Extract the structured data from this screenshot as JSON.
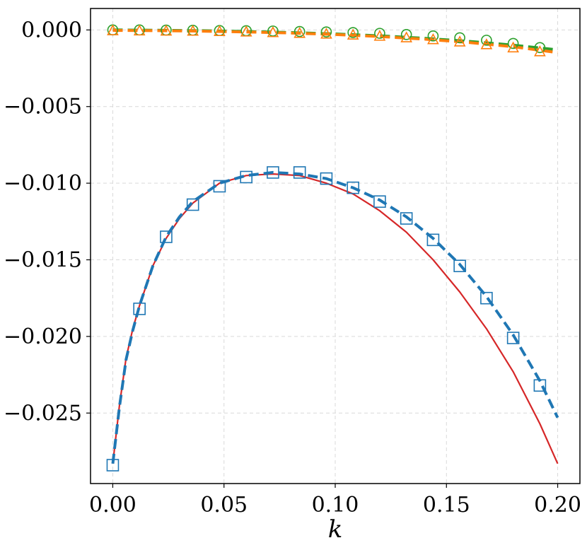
{
  "chart_data": {
    "type": "line",
    "xlabel": "k",
    "ylabel": "",
    "xlim": [
      -0.01,
      0.21
    ],
    "ylim": [
      -0.0296,
      0.0014
    ],
    "grid": true,
    "x_ticks": [
      0.0,
      0.05,
      0.1,
      0.15,
      0.2
    ],
    "x_tick_labels": [
      "0.00",
      "0.05",
      "0.10",
      "0.15",
      "0.20"
    ],
    "y_ticks": [
      0.0,
      -0.005,
      -0.01,
      -0.015,
      -0.02,
      -0.025
    ],
    "y_tick_labels": [
      "0.000",
      "−0.005",
      "−0.010",
      "−0.015",
      "−0.020",
      "−0.025"
    ],
    "colors": {
      "blue": "#1f77b4",
      "orange": "#ff7f0e",
      "green": "#2ca02c",
      "red": "#d62728"
    },
    "series": [
      {
        "style": "dashed-line",
        "color": "#1f77b4",
        "x": [
          0.0,
          0.003,
          0.006,
          0.009,
          0.012,
          0.018,
          0.024,
          0.03,
          0.036,
          0.048,
          0.06,
          0.072,
          0.084,
          0.096,
          0.108,
          0.12,
          0.132,
          0.144,
          0.156,
          0.168,
          0.18,
          0.192,
          0.2
        ],
        "y": [
          -0.0283,
          -0.0246,
          -0.0215,
          -0.0196,
          -0.018,
          -0.0154,
          -0.0135,
          -0.0122,
          -0.0112,
          -0.01,
          -0.0095,
          -0.0093,
          -0.0094,
          -0.0097,
          -0.0103,
          -0.0111,
          -0.0122,
          -0.0136,
          -0.0153,
          -0.0174,
          -0.0199,
          -0.0229,
          -0.0253
        ]
      },
      {
        "style": "square-markers",
        "color": "#1f77b4",
        "x": [
          0.0,
          0.012,
          0.024,
          0.036,
          0.048,
          0.06,
          0.072,
          0.084,
          0.096,
          0.108,
          0.12,
          0.132,
          0.144,
          0.156,
          0.168,
          0.18,
          0.192
        ],
        "y": [
          -0.0284,
          -0.0182,
          -0.0135,
          -0.0114,
          -0.0102,
          -0.0096,
          -0.0093,
          -0.0093,
          -0.0097,
          -0.0103,
          -0.0112,
          -0.0123,
          -0.0137,
          -0.0154,
          -0.0175,
          -0.0201,
          -0.0232
        ]
      },
      {
        "style": "solid-line",
        "color": "#d62728",
        "x": [
          0.0,
          0.003,
          0.006,
          0.009,
          0.012,
          0.018,
          0.024,
          0.03,
          0.036,
          0.048,
          0.06,
          0.072,
          0.084,
          0.096,
          0.108,
          0.12,
          0.132,
          0.144,
          0.156,
          0.168,
          0.18,
          0.192,
          0.2
        ],
        "y": [
          -0.0283,
          -0.0245,
          -0.0214,
          -0.0195,
          -0.018,
          -0.0154,
          -0.0136,
          -0.0123,
          -0.0113,
          -0.01,
          -0.0095,
          -0.0094,
          -0.0095,
          -0.01,
          -0.0107,
          -0.0118,
          -0.0132,
          -0.015,
          -0.0171,
          -0.0195,
          -0.0223,
          -0.0257,
          -0.0283
        ]
      },
      {
        "style": "dashed-line",
        "color": "#2ca02c",
        "x": [
          0.0,
          0.02,
          0.04,
          0.06,
          0.08,
          0.1,
          0.12,
          0.14,
          0.16,
          0.18,
          0.2
        ],
        "y": [
          0.0,
          -2e-05,
          -5e-05,
          -0.0001,
          -0.00017,
          -0.00026,
          -0.00038,
          -0.00054,
          -0.00074,
          -0.00099,
          -0.0013
        ]
      },
      {
        "style": "circle-markers",
        "color": "#2ca02c",
        "x": [
          0.0,
          0.012,
          0.024,
          0.036,
          0.048,
          0.06,
          0.072,
          0.084,
          0.096,
          0.108,
          0.12,
          0.132,
          0.144,
          0.156,
          0.168,
          0.18,
          0.192
        ],
        "y": [
          0.0,
          0.0,
          -1e-05,
          -2e-05,
          -4e-05,
          -5e-05,
          -7e-05,
          -0.0001,
          -0.00013,
          -0.00017,
          -0.00022,
          -0.0003,
          -0.00039,
          -0.00051,
          -0.00067,
          -0.00088,
          -0.00115
        ]
      },
      {
        "style": "dashed-line",
        "color": "#ff7f0e",
        "x": [
          0.0,
          0.02,
          0.04,
          0.06,
          0.08,
          0.1,
          0.12,
          0.14,
          0.16,
          0.18,
          0.2
        ],
        "y": [
          -3e-05,
          -5e-05,
          -8e-05,
          -0.00013,
          -0.0002,
          -0.0003,
          -0.00043,
          -0.0006,
          -0.00082,
          -0.0011,
          -0.00148
        ]
      },
      {
        "style": "triangle-markers",
        "color": "#ff7f0e",
        "x": [
          0.0,
          0.012,
          0.024,
          0.036,
          0.048,
          0.06,
          0.072,
          0.084,
          0.096,
          0.108,
          0.12,
          0.132,
          0.144,
          0.156,
          0.168,
          0.18,
          0.192
        ],
        "y": [
          -8e-05,
          -9e-05,
          -0.0001,
          -0.00011,
          -0.00013,
          -0.00016,
          -0.0002,
          -0.00025,
          -0.0003,
          -0.00036,
          -0.00044,
          -0.00054,
          -0.00066,
          -0.00081,
          -0.00099,
          -0.0012,
          -0.00145
        ]
      }
    ]
  }
}
